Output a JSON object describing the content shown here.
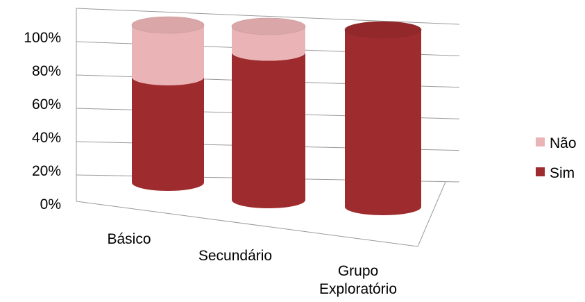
{
  "chart_data": {
    "type": "bar",
    "subtype": "3d-stacked-percent-cylinder",
    "categories": [
      "Básico",
      "Secundário",
      "Grupo Exploratório"
    ],
    "series": [
      {
        "name": "Sim",
        "values": [
          67,
          85,
          100
        ],
        "color": "#9e2b2d"
      },
      {
        "name": "Não",
        "values": [
          33,
          15,
          0
        ],
        "color": "#eab3b5"
      }
    ],
    "yticks": [
      "0%",
      "20%",
      "40%",
      "60%",
      "80%",
      "100%"
    ],
    "ylim": [
      0,
      100
    ],
    "grid": true,
    "legend": {
      "position": "right",
      "order": [
        "Não",
        "Sim"
      ]
    },
    "title": "",
    "xlabel": "",
    "ylabel": ""
  }
}
